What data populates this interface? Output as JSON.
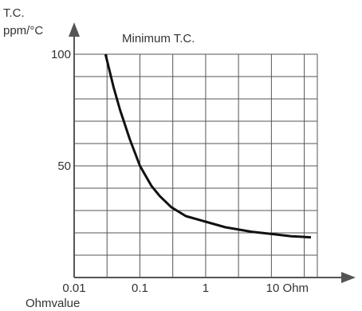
{
  "chart_data": {
    "type": "line",
    "ylabel_line1": "T.C.",
    "ylabel_line2": "ppm/°C",
    "xlabel": "Ohmvalue",
    "annotation": "Minimum T.C.",
    "x_scale": "log",
    "x_ticks": [
      {
        "value": 0.01,
        "label": "0.01"
      },
      {
        "value": 0.1,
        "label": "0.1"
      },
      {
        "value": 1,
        "label": "1"
      },
      {
        "value": 10,
        "label": "10 Ohm"
      }
    ],
    "y_ticks": [
      {
        "value": 100,
        "label": "100"
      },
      {
        "value": 50,
        "label": "50"
      }
    ],
    "xlim": [
      0.01,
      50
    ],
    "ylim": [
      0,
      100
    ],
    "grid": true,
    "series": [
      {
        "x": [
          0.03,
          0.04,
          0.05,
          0.07,
          0.1,
          0.15,
          0.2,
          0.3,
          0.5,
          1,
          2,
          5,
          10,
          20,
          40
        ],
        "values": [
          100,
          85,
          75,
          62,
          50,
          41,
          36.5,
          31.5,
          27.5,
          25,
          22.5,
          20.5,
          19.5,
          18.5,
          18
        ]
      }
    ],
    "line_color": "#111111",
    "grid_color": "#555555"
  }
}
